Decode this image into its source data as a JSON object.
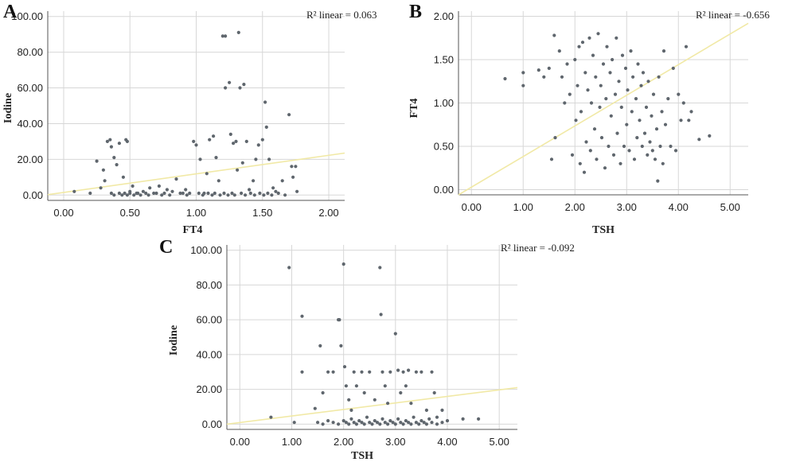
{
  "colors": {
    "grid": "#d7d7d7",
    "axis": "#555555",
    "point": "#5f666d",
    "fit": "#f1e9a6"
  },
  "chart_data": [
    {
      "type": "scatter",
      "panel": "A",
      "xlabel": "FT4",
      "ylabel": "Iodine",
      "annotation": "R² linear = 0.063",
      "xlim": [
        -0.12,
        2.12
      ],
      "ylim": [
        -3,
        103
      ],
      "xticks": [
        "0.00",
        "0.50",
        "1.00",
        "1.50",
        "2.00"
      ],
      "xtick_values": [
        0,
        0.5,
        1,
        1.5,
        2
      ],
      "yticks": [
        "0.00",
        "20.00",
        "40.00",
        "60.00",
        "80.00",
        "100.00"
      ],
      "ytick_values": [
        0,
        20,
        40,
        60,
        80,
        100
      ],
      "grid": true,
      "fit_line": [
        [
          -0.12,
          0.2
        ],
        [
          2.12,
          23.5
        ]
      ],
      "points": [
        [
          0.08,
          2
        ],
        [
          0.2,
          1
        ],
        [
          0.25,
          19
        ],
        [
          0.28,
          4
        ],
        [
          0.3,
          14
        ],
        [
          0.31,
          8
        ],
        [
          0.33,
          30
        ],
        [
          0.35,
          31
        ],
        [
          0.36,
          27
        ],
        [
          0.38,
          21
        ],
        [
          0.4,
          17
        ],
        [
          0.42,
          29
        ],
        [
          0.45,
          10
        ],
        [
          0.47,
          31
        ],
        [
          0.48,
          30
        ],
        [
          0.5,
          2
        ],
        [
          0.52,
          5
        ],
        [
          0.55,
          1
        ],
        [
          0.6,
          2
        ],
        [
          0.65,
          4
        ],
        [
          0.7,
          1
        ],
        [
          0.72,
          5
        ],
        [
          0.78,
          3
        ],
        [
          0.82,
          2
        ],
        [
          0.85,
          9
        ],
        [
          0.88,
          1
        ],
        [
          0.92,
          3
        ],
        [
          0.95,
          1
        ],
        [
          0.98,
          30
        ],
        [
          1,
          28
        ],
        [
          1.03,
          20
        ],
        [
          1.06,
          1
        ],
        [
          1.08,
          12
        ],
        [
          1.1,
          31
        ],
        [
          1.13,
          33
        ],
        [
          1.15,
          21
        ],
        [
          1.17,
          8
        ],
        [
          1.2,
          89
        ],
        [
          1.22,
          89
        ],
        [
          1.22,
          60
        ],
        [
          1.25,
          63
        ],
        [
          1.26,
          34
        ],
        [
          1.28,
          29
        ],
        [
          1.3,
          30
        ],
        [
          1.31,
          14
        ],
        [
          1.32,
          91
        ],
        [
          1.33,
          60
        ],
        [
          1.35,
          18
        ],
        [
          1.36,
          62
        ],
        [
          1.38,
          30
        ],
        [
          1.4,
          3
        ],
        [
          1.43,
          8
        ],
        [
          1.45,
          20
        ],
        [
          1.47,
          28
        ],
        [
          1.5,
          31
        ],
        [
          1.52,
          52
        ],
        [
          1.53,
          38
        ],
        [
          1.55,
          20
        ],
        [
          1.58,
          4
        ],
        [
          1.6,
          2
        ],
        [
          1.65,
          8
        ],
        [
          1.7,
          45
        ],
        [
          1.72,
          16
        ],
        [
          1.73,
          10
        ],
        [
          1.75,
          16
        ],
        [
          1.76,
          2
        ],
        [
          0.36,
          1
        ],
        [
          0.38,
          0
        ],
        [
          0.42,
          1
        ],
        [
          0.44,
          0
        ],
        [
          0.46,
          1
        ],
        [
          0.48,
          0
        ],
        [
          0.5,
          1
        ],
        [
          0.53,
          0
        ],
        [
          0.56,
          1
        ],
        [
          0.58,
          0
        ],
        [
          0.62,
          1
        ],
        [
          0.64,
          0
        ],
        [
          0.68,
          1
        ],
        [
          0.74,
          0
        ],
        [
          0.76,
          1
        ],
        [
          0.8,
          0
        ],
        [
          0.9,
          1
        ],
        [
          0.93,
          0
        ],
        [
          1.02,
          1
        ],
        [
          1.05,
          0
        ],
        [
          1.09,
          1
        ],
        [
          1.12,
          0
        ],
        [
          1.14,
          1
        ],
        [
          1.18,
          0
        ],
        [
          1.21,
          1
        ],
        [
          1.24,
          0
        ],
        [
          1.27,
          1
        ],
        [
          1.29,
          0
        ],
        [
          1.34,
          1
        ],
        [
          1.37,
          0
        ],
        [
          1.41,
          1
        ],
        [
          1.44,
          0
        ],
        [
          1.48,
          1
        ],
        [
          1.51,
          0
        ],
        [
          1.54,
          1
        ],
        [
          1.57,
          0
        ],
        [
          1.62,
          1
        ],
        [
          1.67,
          0
        ]
      ]
    },
    {
      "type": "scatter",
      "panel": "B",
      "xlabel": "TSH",
      "ylabel": "FT4",
      "annotation": "R² linear = -0.656",
      "xlim": [
        -0.25,
        5.35
      ],
      "ylim": [
        -0.06,
        2.06
      ],
      "xticks": [
        "0.00",
        "1.00",
        "2.00",
        "3.00",
        "4.00",
        "5.00"
      ],
      "xtick_values": [
        0,
        1,
        2,
        3,
        4,
        5
      ],
      "yticks": [
        "0.00",
        "0.50",
        "1.00",
        "1.50",
        "2.00"
      ],
      "ytick_values": [
        0,
        0.5,
        1,
        1.5,
        2
      ],
      "grid": true,
      "fit_line": [
        [
          -0.25,
          -0.06
        ],
        [
          5.35,
          1.92
        ]
      ],
      "points": [
        [
          0.65,
          1.28
        ],
        [
          1.0,
          1.35
        ],
        [
          1.0,
          1.2
        ],
        [
          1.3,
          1.38
        ],
        [
          1.4,
          1.3
        ],
        [
          1.5,
          1.4
        ],
        [
          1.55,
          0.35
        ],
        [
          1.6,
          1.78
        ],
        [
          1.62,
          0.6
        ],
        [
          1.7,
          1.6
        ],
        [
          1.75,
          1.3
        ],
        [
          1.8,
          1.0
        ],
        [
          1.85,
          1.45
        ],
        [
          1.9,
          1.1
        ],
        [
          1.95,
          0.4
        ],
        [
          2.0,
          1.5
        ],
        [
          2.02,
          0.8
        ],
        [
          2.05,
          1.2
        ],
        [
          2.08,
          1.65
        ],
        [
          2.1,
          0.3
        ],
        [
          2.12,
          0.9
        ],
        [
          2.15,
          1.7
        ],
        [
          2.18,
          0.2
        ],
        [
          2.2,
          1.35
        ],
        [
          2.22,
          0.55
        ],
        [
          2.25,
          1.15
        ],
        [
          2.28,
          1.75
        ],
        [
          2.3,
          0.45
        ],
        [
          2.32,
          1.0
        ],
        [
          2.35,
          1.55
        ],
        [
          2.38,
          0.7
        ],
        [
          2.4,
          1.3
        ],
        [
          2.42,
          0.35
        ],
        [
          2.45,
          1.8
        ],
        [
          2.48,
          0.95
        ],
        [
          2.5,
          1.2
        ],
        [
          2.52,
          0.6
        ],
        [
          2.55,
          1.45
        ],
        [
          2.58,
          0.25
        ],
        [
          2.6,
          1.05
        ],
        [
          2.62,
          1.65
        ],
        [
          2.65,
          0.5
        ],
        [
          2.68,
          1.35
        ],
        [
          2.7,
          0.85
        ],
        [
          2.72,
          1.5
        ],
        [
          2.75,
          0.4
        ],
        [
          2.78,
          1.1
        ],
        [
          2.8,
          1.75
        ],
        [
          2.82,
          0.65
        ],
        [
          2.85,
          1.25
        ],
        [
          2.88,
          0.3
        ],
        [
          2.9,
          0.95
        ],
        [
          2.92,
          1.55
        ],
        [
          2.95,
          0.5
        ],
        [
          2.98,
          1.4
        ],
        [
          3.0,
          0.75
        ],
        [
          3.02,
          1.15
        ],
        [
          3.05,
          0.45
        ],
        [
          3.08,
          1.6
        ],
        [
          3.1,
          0.9
        ],
        [
          3.12,
          1.3
        ],
        [
          3.15,
          0.35
        ],
        [
          3.18,
          1.05
        ],
        [
          3.2,
          0.6
        ],
        [
          3.22,
          1.45
        ],
        [
          3.25,
          0.8
        ],
        [
          3.28,
          1.2
        ],
        [
          3.3,
          0.5
        ],
        [
          3.32,
          1.35
        ],
        [
          3.35,
          0.65
        ],
        [
          3.38,
          0.95
        ],
        [
          3.4,
          0.4
        ],
        [
          3.42,
          1.25
        ],
        [
          3.45,
          0.55
        ],
        [
          3.48,
          0.85
        ],
        [
          3.5,
          0.45
        ],
        [
          3.52,
          1.1
        ],
        [
          3.55,
          0.35
        ],
        [
          3.58,
          0.7
        ],
        [
          3.6,
          0.1
        ],
        [
          3.62,
          1.3
        ],
        [
          3.65,
          0.5
        ],
        [
          3.68,
          0.9
        ],
        [
          3.7,
          0.3
        ],
        [
          3.72,
          1.6
        ],
        [
          3.75,
          0.75
        ],
        [
          3.8,
          1.05
        ],
        [
          3.85,
          0.5
        ],
        [
          3.9,
          1.4
        ],
        [
          3.95,
          0.45
        ],
        [
          4.0,
          1.1
        ],
        [
          4.05,
          0.8
        ],
        [
          4.1,
          1.0
        ],
        [
          4.15,
          1.65
        ],
        [
          4.2,
          0.8
        ],
        [
          4.25,
          0.9
        ],
        [
          4.4,
          0.58
        ],
        [
          4.6,
          0.62
        ]
      ]
    },
    {
      "type": "scatter",
      "panel": "C",
      "xlabel": "TSH",
      "ylabel": "Iodine",
      "annotation": "R² linear = -0.092",
      "xlim": [
        -0.25,
        5.35
      ],
      "ylim": [
        -3,
        103
      ],
      "xticks": [
        "0.00",
        "1.00",
        "2.00",
        "3.00",
        "4.00",
        "5.00"
      ],
      "xtick_values": [
        0,
        1,
        2,
        3,
        4,
        5
      ],
      "yticks": [
        "0.00",
        "20.00",
        "40.00",
        "60.00",
        "80.00",
        "100.00"
      ],
      "ytick_values": [
        0,
        20,
        40,
        60,
        80,
        100
      ],
      "grid": true,
      "fit_line": [
        [
          -0.25,
          0
        ],
        [
          5.35,
          21
        ]
      ],
      "points": [
        [
          0.6,
          4
        ],
        [
          0.95,
          90
        ],
        [
          1.05,
          1
        ],
        [
          1.2,
          62
        ],
        [
          1.2,
          30
        ],
        [
          1.45,
          9
        ],
        [
          1.55,
          45
        ],
        [
          1.6,
          18
        ],
        [
          1.7,
          30
        ],
        [
          1.8,
          30
        ],
        [
          1.9,
          60
        ],
        [
          1.92,
          60
        ],
        [
          1.95,
          45
        ],
        [
          2.0,
          92
        ],
        [
          2.02,
          33
        ],
        [
          2.05,
          22
        ],
        [
          2.1,
          14
        ],
        [
          2.15,
          8
        ],
        [
          2.2,
          30
        ],
        [
          2.25,
          22
        ],
        [
          2.35,
          30
        ],
        [
          2.4,
          18
        ],
        [
          2.5,
          30
        ],
        [
          2.6,
          14
        ],
        [
          2.7,
          90
        ],
        [
          2.72,
          63
        ],
        [
          2.75,
          30
        ],
        [
          2.8,
          22
        ],
        [
          2.85,
          12
        ],
        [
          2.9,
          30
        ],
        [
          3.0,
          52
        ],
        [
          3.05,
          31
        ],
        [
          3.1,
          18
        ],
        [
          3.15,
          30
        ],
        [
          3.2,
          22
        ],
        [
          3.25,
          31
        ],
        [
          3.3,
          12
        ],
        [
          3.4,
          30
        ],
        [
          3.5,
          30
        ],
        [
          3.6,
          8
        ],
        [
          3.7,
          30
        ],
        [
          3.75,
          18
        ],
        [
          3.8,
          4
        ],
        [
          3.9,
          8
        ],
        [
          4.0,
          2
        ],
        [
          4.3,
          3
        ],
        [
          4.6,
          3
        ],
        [
          1.5,
          1
        ],
        [
          1.6,
          0
        ],
        [
          1.7,
          2
        ],
        [
          1.8,
          1
        ],
        [
          1.9,
          0
        ],
        [
          2.0,
          2
        ],
        [
          2.05,
          1
        ],
        [
          2.1,
          0
        ],
        [
          2.15,
          3
        ],
        [
          2.2,
          1
        ],
        [
          2.25,
          0
        ],
        [
          2.3,
          2
        ],
        [
          2.35,
          1
        ],
        [
          2.4,
          0
        ],
        [
          2.45,
          4
        ],
        [
          2.5,
          1
        ],
        [
          2.55,
          0
        ],
        [
          2.6,
          2
        ],
        [
          2.65,
          1
        ],
        [
          2.7,
          0
        ],
        [
          2.75,
          3
        ],
        [
          2.8,
          1
        ],
        [
          2.85,
          0
        ],
        [
          2.9,
          2
        ],
        [
          2.95,
          1
        ],
        [
          3.0,
          0
        ],
        [
          3.05,
          3
        ],
        [
          3.1,
          1
        ],
        [
          3.15,
          0
        ],
        [
          3.2,
          2
        ],
        [
          3.25,
          1
        ],
        [
          3.3,
          0
        ],
        [
          3.35,
          4
        ],
        [
          3.4,
          1
        ],
        [
          3.45,
          0
        ],
        [
          3.5,
          2
        ],
        [
          3.55,
          1
        ],
        [
          3.6,
          0
        ],
        [
          3.65,
          3
        ],
        [
          3.7,
          1
        ],
        [
          3.8,
          0
        ],
        [
          3.9,
          1
        ]
      ]
    }
  ]
}
